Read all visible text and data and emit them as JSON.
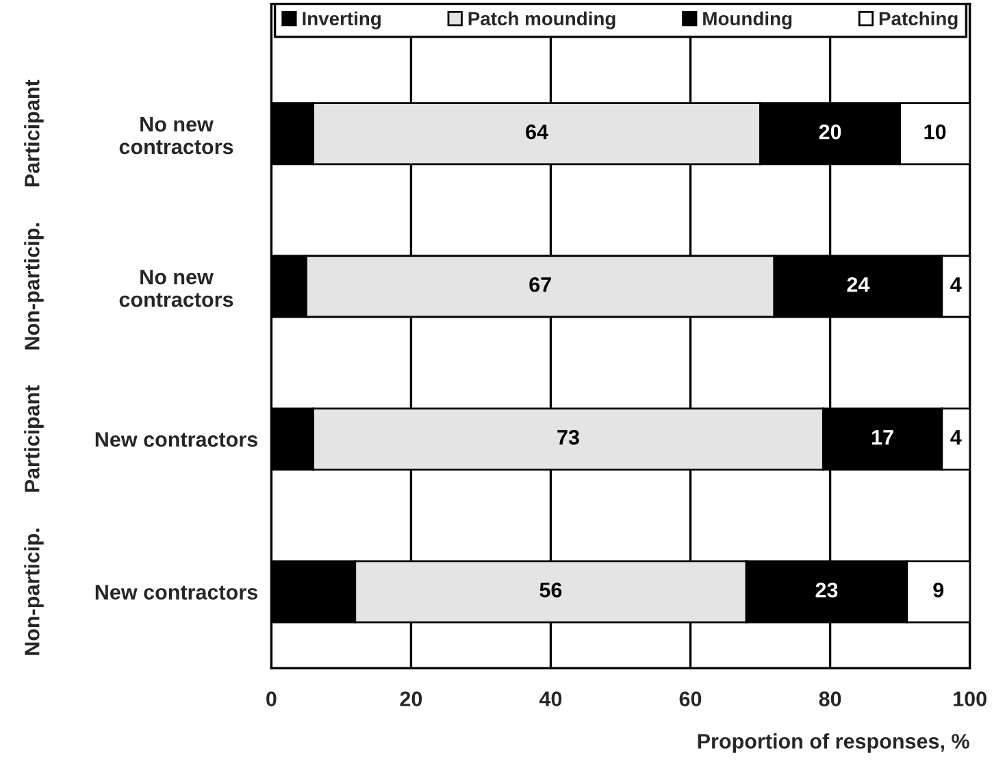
{
  "chart_data": {
    "type": "bar",
    "orientation": "horizontal",
    "stacked": true,
    "categories": [
      "No new\ncontractors",
      "No new\ncontractors",
      "New contractors",
      "New contractors"
    ],
    "series": [
      {
        "name": "Inverting",
        "color": "#000000",
        "values": [
          6,
          5,
          6,
          12
        ],
        "value_labels": [
          null,
          null,
          null,
          null
        ]
      },
      {
        "name": "Patch mounding",
        "color": "#e4e4e4",
        "values": [
          64,
          67,
          73,
          56
        ],
        "value_labels": [
          "64",
          "67",
          "73",
          "56"
        ]
      },
      {
        "name": "Mounding",
        "color": "#000000",
        "values": [
          20,
          24,
          17,
          23
        ],
        "value_labels": [
          "20",
          "24",
          "17",
          "23"
        ]
      },
      {
        "name": "Patching",
        "color": "#ffffff",
        "values": [
          10,
          4,
          4,
          9
        ],
        "value_labels": [
          "10",
          "4",
          "4",
          "9"
        ]
      }
    ],
    "xlabel": "Proportion of responses, %",
    "xlim": [
      0,
      100
    ],
    "xticks": [
      0,
      20,
      40,
      60,
      80,
      100
    ],
    "annotations": [
      "Participant",
      "Non-particip.",
      "Participant",
      "Non-particip."
    ],
    "grid": "x",
    "legend": "top"
  }
}
